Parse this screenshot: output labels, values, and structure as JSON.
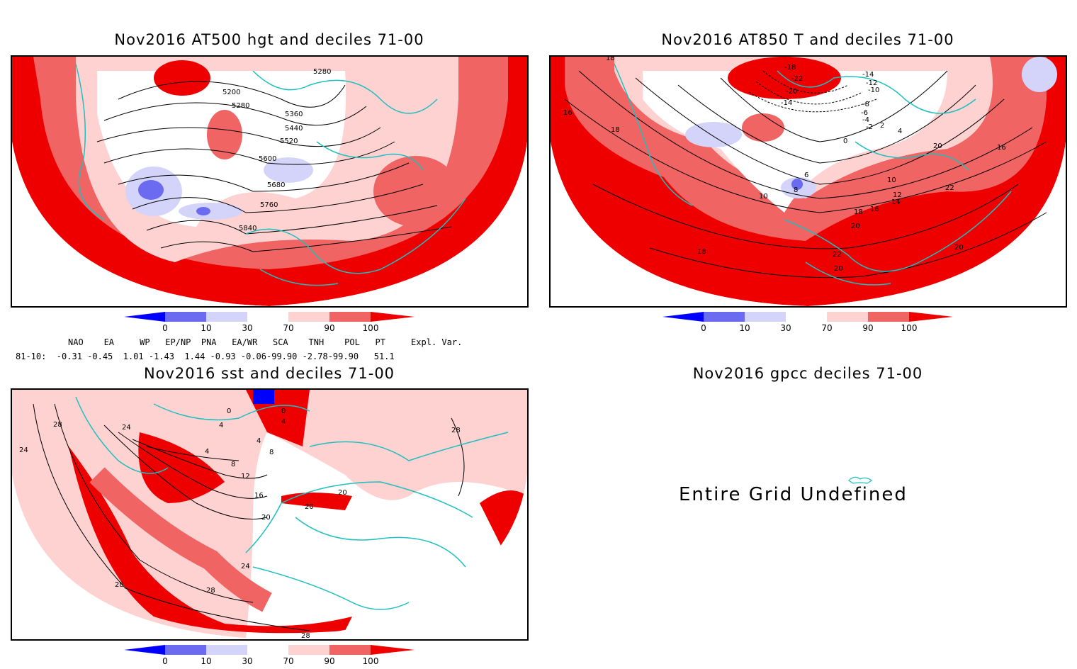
{
  "panels": [
    {
      "title": "Nov2016 AT500 hgt and deciles 71-00",
      "contour_labels": [
        "5280",
        "5200",
        "5280",
        "5360",
        "5440",
        "5520",
        "5600",
        "5680",
        "5760",
        "5840"
      ]
    },
    {
      "title": "Nov2016 AT850 T and deciles 71-00",
      "contour_labels": [
        "18",
        "16",
        "18",
        "-18",
        "-22",
        "-20",
        "-14",
        "-14",
        "-12",
        "-10",
        "-8",
        "-6",
        "-4",
        "-2",
        "0",
        "2",
        "4",
        "6",
        "8",
        "10",
        "10",
        "12",
        "14",
        "16",
        "18",
        "20",
        "20",
        "22",
        "20",
        "18",
        "22",
        "20",
        "16"
      ]
    },
    {
      "title": "Nov2016 sst and deciles 71-00",
      "contour_labels": [
        "28",
        "24",
        "24",
        "0",
        "4",
        "0",
        "4",
        "4",
        "4",
        "8",
        "8",
        "12",
        "16",
        "20",
        "20",
        "20",
        "24",
        "28",
        "28",
        "28",
        "28"
      ]
    },
    {
      "title": "Nov2016 gpcc deciles 71-00",
      "undefined_text": "Entire Grid Undefined"
    }
  ],
  "colorbar": {
    "ticks": [
      "0",
      "10",
      "30",
      "70",
      "90",
      "100"
    ],
    "colors": [
      "#0000ff",
      "#6b6bf2",
      "#d4d4fa",
      "#ffffff",
      "#ffd2d2",
      "#f06464",
      "#ee0000"
    ]
  },
  "indices": {
    "header": "NAO    EA     WP   EP/NP  PNA   EA/WR   SCA    TNH    POL   PT     Expl. Var.",
    "row": "81-10:  -0.31 -0.45  1.01 -1.43  1.44 -0.93 -0.06-99.90 -2.78-99.90   51.1"
  },
  "colors": {
    "land_outline": "#1fbfbf",
    "contour": "#000000",
    "strong": "#ee0000",
    "mid": "#f06464",
    "light": "#ffd2d2",
    "lightblue": "#d4d4fa",
    "midblue": "#6b6bf2"
  }
}
